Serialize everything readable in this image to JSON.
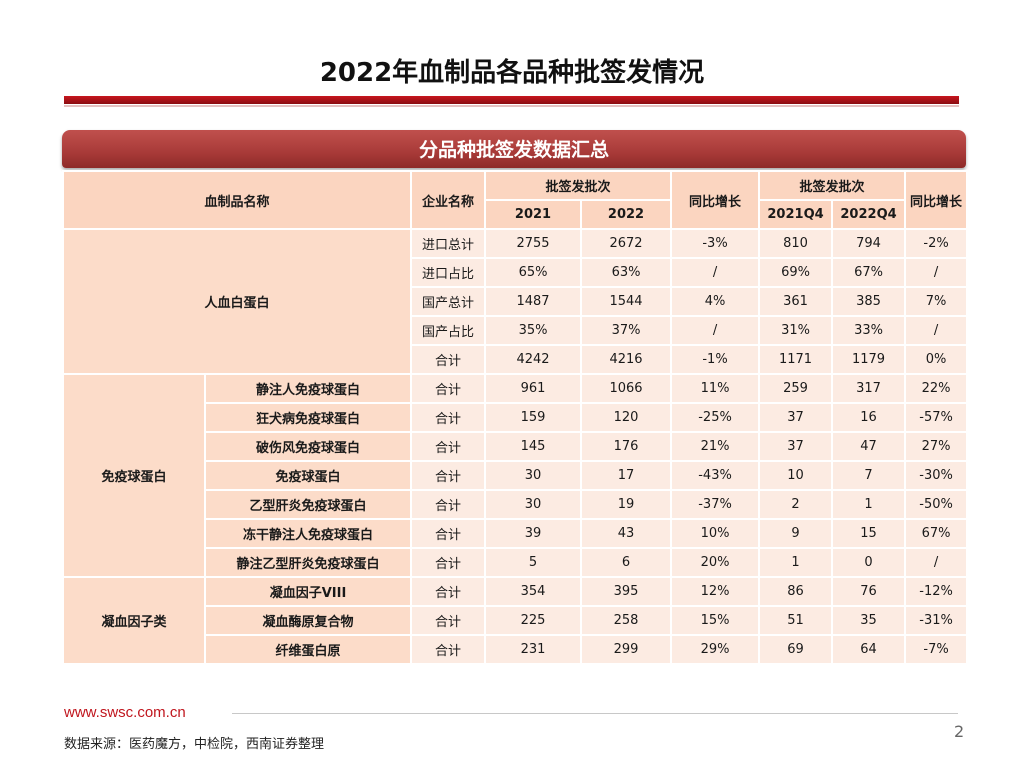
{
  "title": "2022年血制品各品种批签发情况",
  "banner": "分品种批签发数据汇总",
  "headers": {
    "product_name": "血制品名称",
    "company_name": "企业名称",
    "batches": "批签发批次",
    "yoy": "同比增长",
    "batches_q4": "批签发批次",
    "yoy_q4": "同比增长",
    "y2021": "2021",
    "y2022": "2022",
    "q2021": "2021Q4",
    "q2022": "2022Q4"
  },
  "groups": [
    {
      "category": "人血白蛋白",
      "rows": [
        {
          "company": "进口总计",
          "v2021": "2755",
          "v2022": "2672",
          "yoy": "-3%",
          "q2021": "810",
          "q2022": "794",
          "yoy_q4": "-2%"
        },
        {
          "company": "进口占比",
          "v2021": "65%",
          "v2022": "63%",
          "yoy": "/",
          "q2021": "69%",
          "q2022": "67%",
          "yoy_q4": "/"
        },
        {
          "company": "国产总计",
          "v2021": "1487",
          "v2022": "1544",
          "yoy": "4%",
          "q2021": "361",
          "q2022": "385",
          "yoy_q4": "7%"
        },
        {
          "company": "国产占比",
          "v2021": "35%",
          "v2022": "37%",
          "yoy": "/",
          "q2021": "31%",
          "q2022": "33%",
          "yoy_q4": "/"
        },
        {
          "company": "合计",
          "v2021": "4242",
          "v2022": "4216",
          "yoy": "-1%",
          "q2021": "1171",
          "q2022": "1179",
          "yoy_q4": "0%"
        }
      ]
    },
    {
      "category": "免疫球蛋白",
      "rows": [
        {
          "name": "静注人免疫球蛋白",
          "company": "合计",
          "v2021": "961",
          "v2022": "1066",
          "yoy": "11%",
          "q2021": "259",
          "q2022": "317",
          "yoy_q4": "22%"
        },
        {
          "name": "狂犬病免疫球蛋白",
          "company": "合计",
          "v2021": "159",
          "v2022": "120",
          "yoy": "-25%",
          "q2021": "37",
          "q2022": "16",
          "yoy_q4": "-57%"
        },
        {
          "name": "破伤风免疫球蛋白",
          "company": "合计",
          "v2021": "145",
          "v2022": "176",
          "yoy": "21%",
          "q2021": "37",
          "q2022": "47",
          "yoy_q4": "27%"
        },
        {
          "name": "免疫球蛋白",
          "company": "合计",
          "v2021": "30",
          "v2022": "17",
          "yoy": "-43%",
          "q2021": "10",
          "q2022": "7",
          "yoy_q4": "-30%"
        },
        {
          "name": "乙型肝炎免疫球蛋白",
          "company": "合计",
          "v2021": "30",
          "v2022": "19",
          "yoy": "-37%",
          "q2021": "2",
          "q2022": "1",
          "yoy_q4": "-50%"
        },
        {
          "name": "冻干静注人免疫球蛋白",
          "company": "合计",
          "v2021": "39",
          "v2022": "43",
          "yoy": "10%",
          "q2021": "9",
          "q2022": "15",
          "yoy_q4": "67%"
        },
        {
          "name": "静注乙型肝炎免疫球蛋白",
          "company": "合计",
          "v2021": "5",
          "v2022": "6",
          "yoy": "20%",
          "q2021": "1",
          "q2022": "0",
          "yoy_q4": "/"
        }
      ]
    },
    {
      "category": "凝血因子类",
      "rows": [
        {
          "name": "凝血因子VIII",
          "company": "合计",
          "v2021": "354",
          "v2022": "395",
          "yoy": "12%",
          "q2021": "86",
          "q2022": "76",
          "yoy_q4": "-12%"
        },
        {
          "name": "凝血酶原复合物",
          "company": "合计",
          "v2021": "225",
          "v2022": "258",
          "yoy": "15%",
          "q2021": "51",
          "q2022": "35",
          "yoy_q4": "-31%"
        },
        {
          "name": "纤维蛋白原",
          "company": "合计",
          "v2021": "231",
          "v2022": "299",
          "yoy": "29%",
          "q2021": "69",
          "q2022": "64",
          "yoy_q4": "-7%"
        }
      ]
    }
  ],
  "footer": {
    "url": "www.swsc.com.cn",
    "page_number": "2",
    "source": "数据来源：医药魔方，中检院，西南证券整理"
  },
  "colors": {
    "brand_red": "#c8161e",
    "banner_red": "#a83a38",
    "header_fill": "#fbd5c0",
    "cell_fill": "#fcebe2"
  }
}
